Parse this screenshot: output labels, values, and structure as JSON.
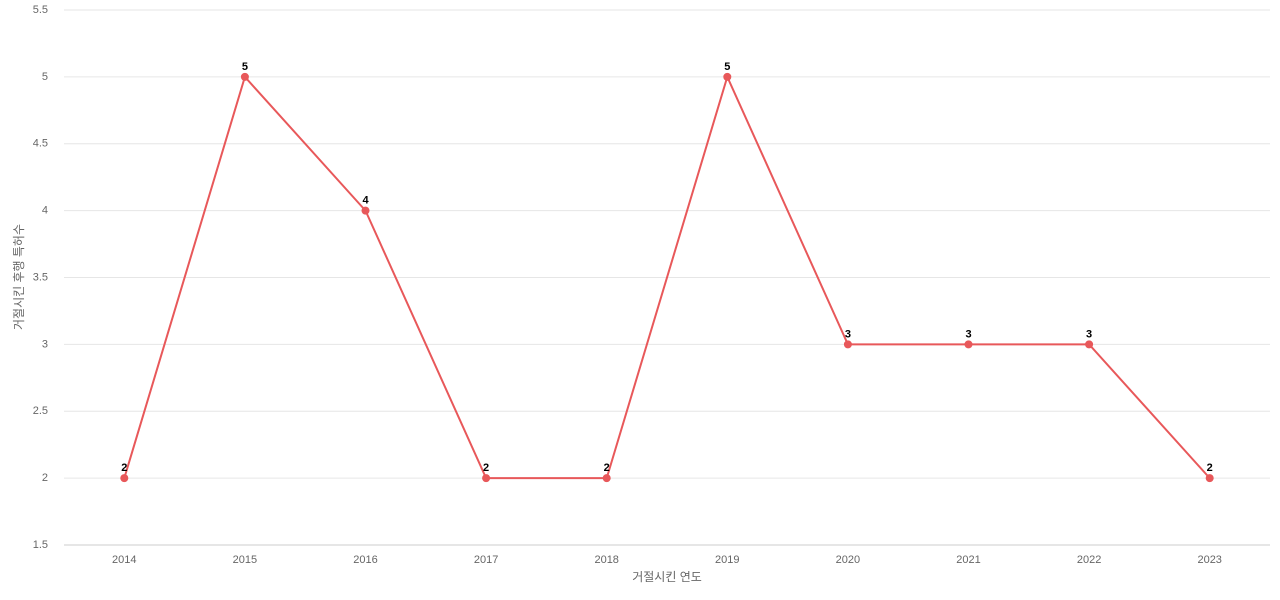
{
  "chart_data": {
    "type": "line",
    "x_label": "거절시킨 연도",
    "y_label": "거절시킨 후행 특허수",
    "categories": [
      "2014",
      "2015",
      "2016",
      "2017",
      "2018",
      "2019",
      "2020",
      "2021",
      "2022",
      "2023"
    ],
    "values": [
      2,
      5,
      4,
      2,
      2,
      5,
      3,
      3,
      3,
      2
    ],
    "color": "#e8585a",
    "ylim": [
      1.5,
      5.5
    ],
    "yticks": [
      1.5,
      2,
      2.5,
      3,
      3.5,
      4,
      4.5,
      5,
      5.5
    ],
    "grid": true
  }
}
